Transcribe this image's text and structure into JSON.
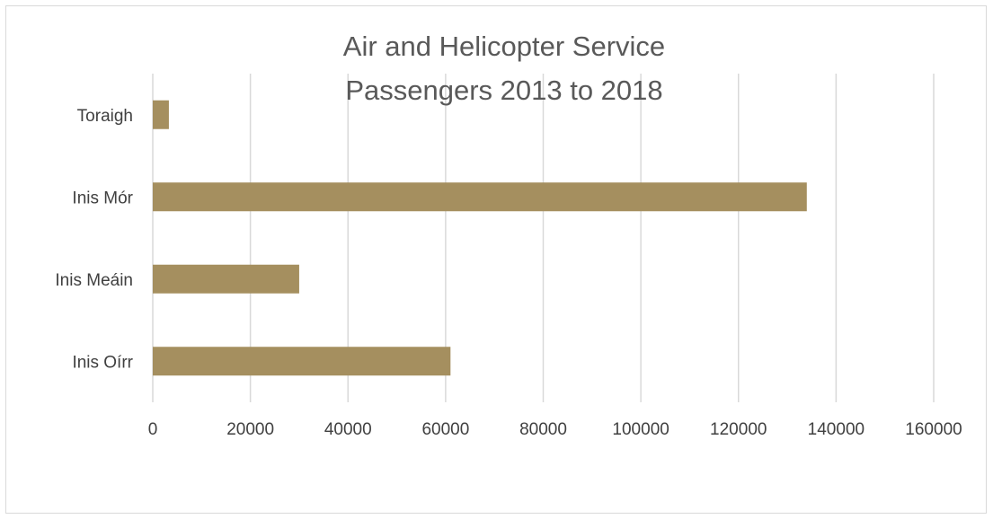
{
  "chart_data": {
    "type": "bar",
    "orientation": "horizontal",
    "title_lines": [
      "Air and Helicopter Service",
      "Passengers 2013 to 2018"
    ],
    "categories": [
      "Inis Oírr",
      "Inis Meáin",
      "Inis Mór ",
      "Toraigh"
    ],
    "values": [
      61000,
      30000,
      134000,
      3300
    ],
    "xlim": [
      0,
      160000
    ],
    "x_ticks": [
      "0",
      "20000",
      "40000",
      "60000",
      "80000",
      "100000",
      "120000",
      "140000",
      "160000"
    ],
    "grid": "vertical",
    "legend": "none",
    "bar_color": "#a58f5f"
  }
}
